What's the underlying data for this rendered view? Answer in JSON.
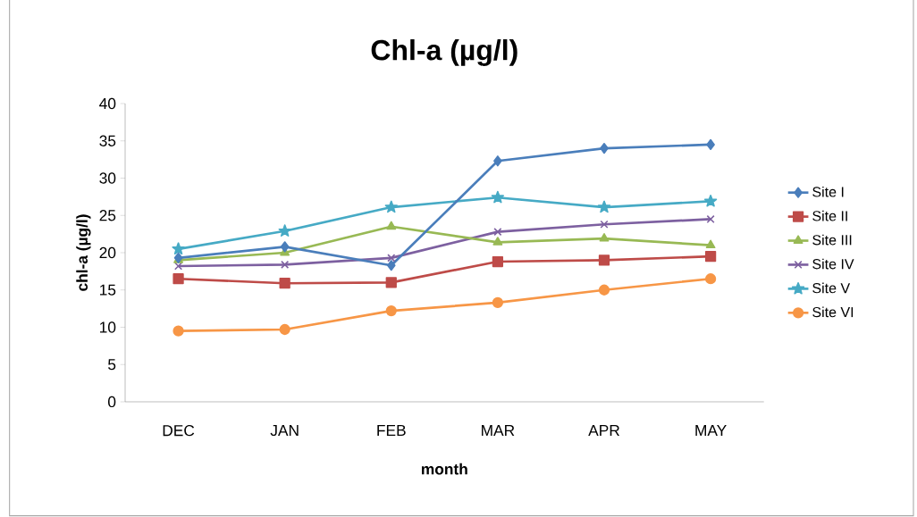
{
  "chart_data": {
    "type": "line",
    "title": "Chl-a (µg/l)",
    "xlabel": "month",
    "ylabel": "chl-a (µg/l)",
    "categories": [
      "DEC",
      "JAN",
      "FEB",
      "MAR",
      "APR",
      "MAY"
    ],
    "ylim": [
      0,
      40
    ],
    "yticks": [
      0,
      5,
      10,
      15,
      20,
      25,
      30,
      35,
      40
    ],
    "grid": false,
    "legend": "right",
    "series": [
      {
        "name": "Site I",
        "color": "#4a7ebb",
        "marker": "diamond",
        "values": [
          19.3,
          20.8,
          18.3,
          32.3,
          34.0,
          34.5
        ]
      },
      {
        "name": "Site II",
        "color": "#be4b48",
        "marker": "square",
        "values": [
          16.5,
          15.9,
          16.0,
          18.8,
          19.0,
          19.5
        ]
      },
      {
        "name": "Site III",
        "color": "#98b954",
        "marker": "triangle",
        "values": [
          19.0,
          20.0,
          23.5,
          21.4,
          21.9,
          21.0
        ]
      },
      {
        "name": "Site IV",
        "color": "#7d60a0",
        "marker": "cross",
        "values": [
          18.2,
          18.4,
          19.3,
          22.8,
          23.8,
          24.5
        ]
      },
      {
        "name": "Site V",
        "color": "#46aac5",
        "marker": "star",
        "values": [
          20.5,
          22.9,
          26.1,
          27.4,
          26.1,
          26.9
        ]
      },
      {
        "name": "Site VI",
        "color": "#f79646",
        "marker": "circle",
        "values": [
          9.5,
          9.7,
          12.2,
          13.3,
          15.0,
          16.5
        ]
      }
    ]
  }
}
